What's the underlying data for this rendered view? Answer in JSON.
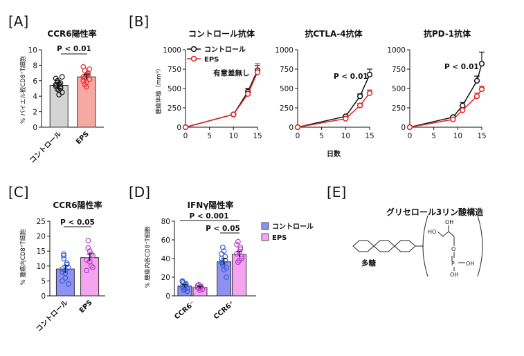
{
  "colors": {
    "control_line": "#111111",
    "eps_line": "#e02020",
    "bar_grey": "#d4d4d4",
    "bar_salmon": "#f5a9a0",
    "bar_blue": "#8f90f2",
    "bar_pink": "#f5a5f0",
    "dot_blue": "#3560d8",
    "dot_magenta": "#b43fc8",
    "dot_red": "#e83030"
  },
  "panels": {
    "A": {
      "label": "[A]",
      "title": "CCR6陽性率",
      "ylabel": "% パイエル板CD8⁺T細胞",
      "sig": "P < 0.01"
    },
    "B": {
      "label": "[B]",
      "ylabel": "腫瘍体積（mm³）",
      "xlabel": "日数",
      "legend_control": "コントロール",
      "legend_eps": "EPS",
      "ns_note": "有意差無し",
      "titles": [
        "コントロール抗体",
        "抗CTLA-4抗体",
        "抗PD-1抗体"
      ],
      "sig2": "P < 0.01",
      "sig3": "P < 0.01"
    },
    "C": {
      "label": "[C]",
      "title": "CCR6陽性率",
      "ylabel": "% 腫瘍内CD8⁺T細胞",
      "sig": "P < 0.05"
    },
    "D": {
      "label": "[D]",
      "title": "IFNγ陽性率",
      "ylabel": "% 腫瘍内各CD8⁺T細胞",
      "sig_top": "P < 0.001",
      "sig_low": "P < 0.05",
      "legend_control": "コントロール",
      "legend_eps": "EPS"
    },
    "E": {
      "label": "[E]",
      "title": "グリセロール3リン酸構造",
      "polysaccharide": "多糖",
      "atoms": {
        "ho1": "HO",
        "oh2": "OH",
        "o": "O",
        "p": "P",
        "oh3": "OH",
        "oh4": "OH"
      }
    }
  },
  "chart_data": [
    {
      "id": "A",
      "type": "bar",
      "title": "CCR6陽性率",
      "ylabel": "% パイエル板CD8⁺T細胞",
      "ylim": [
        0,
        10
      ],
      "yticks": [
        0,
        2,
        4,
        6,
        8,
        10
      ],
      "categories": [
        "コントロール",
        "EPS"
      ],
      "values": [
        5.4,
        6.5
      ],
      "errors": [
        0.3,
        0.35
      ],
      "points": [
        [
          5.5,
          6.0,
          4.8,
          5.2,
          4.5,
          6.3,
          5.8,
          4.2,
          5.0,
          6.5,
          5.3,
          4.9,
          5.6,
          5.7
        ],
        [
          6.5,
          7.3,
          5.8,
          6.7,
          7.5,
          6.0,
          5.5,
          6.8,
          7.0,
          6.2,
          7.8,
          6.4,
          5.2,
          6.9
        ]
      ],
      "annotation": "P < 0.01"
    },
    {
      "id": "B1",
      "type": "line",
      "title": "コントロール抗体",
      "xlabel": "日数",
      "ylabel": "腫瘍体積（mm³）",
      "xlim": [
        0,
        15
      ],
      "ylim": [
        0,
        1000
      ],
      "xticks": [
        0,
        5,
        10,
        15
      ],
      "yticks": [
        0,
        250,
        500,
        750,
        1000
      ],
      "x": [
        0,
        10,
        13,
        15
      ],
      "series": [
        {
          "name": "コントロール",
          "values": [
            0,
            165,
            460,
            735
          ],
          "errors": [
            0,
            15,
            40,
            60
          ]
        },
        {
          "name": "EPS",
          "values": [
            0,
            165,
            430,
            710
          ],
          "errors": [
            0,
            15,
            35,
            110
          ]
        }
      ],
      "annotation": "有意差無し"
    },
    {
      "id": "B2",
      "type": "line",
      "title": "抗CTLA-4抗体",
      "xlabel": "日数",
      "ylabel": "腫瘍体積（mm³）",
      "xlim": [
        0,
        15
      ],
      "ylim": [
        0,
        1000
      ],
      "xticks": [
        0,
        5,
        10,
        15
      ],
      "yticks": [
        0,
        250,
        500,
        750,
        1000
      ],
      "x": [
        0,
        10,
        13,
        15
      ],
      "series": [
        {
          "name": "コントロール",
          "values": [
            0,
            140,
            400,
            680
          ],
          "errors": [
            0,
            15,
            30,
            70
          ]
        },
        {
          "name": "EPS",
          "values": [
            0,
            110,
            280,
            440
          ],
          "errors": [
            0,
            15,
            25,
            40
          ]
        }
      ],
      "annotation": "P < 0.01"
    },
    {
      "id": "B3",
      "type": "line",
      "title": "抗PD-1抗体",
      "xlabel": "日数",
      "ylabel": "腫瘍体積（mm³）",
      "xlim": [
        0,
        15
      ],
      "ylim": [
        0,
        1000
      ],
      "xticks": [
        0,
        5,
        10,
        15
      ],
      "yticks": [
        0,
        250,
        500,
        750,
        1000
      ],
      "x": [
        0,
        9,
        11,
        14,
        15
      ],
      "series": [
        {
          "name": "コントロール",
          "values": [
            0,
            130,
            280,
            600,
            820
          ],
          "errors": [
            0,
            15,
            40,
            60,
            150
          ]
        },
        {
          "name": "EPS",
          "values": [
            0,
            100,
            220,
            400,
            490
          ],
          "errors": [
            0,
            15,
            30,
            40,
            40
          ]
        }
      ],
      "annotation": "P < 0.01"
    },
    {
      "id": "C",
      "type": "bar",
      "title": "CCR6陽性率",
      "ylabel": "% 腫瘍内CD8⁺T細胞",
      "ylim": [
        0,
        25
      ],
      "yticks": [
        0,
        5,
        10,
        15,
        20,
        25
      ],
      "categories": [
        "コントロール",
        "EPS"
      ],
      "values": [
        9.0,
        12.8
      ],
      "errors": [
        1.2,
        1.2
      ],
      "points": [
        [
          9.0,
          12.5,
          6.0,
          10.5,
          4.0,
          8.0,
          13.5,
          7.5,
          11.0,
          9.5,
          5.0,
          14.0,
          8.5
        ],
        [
          12.0,
          18.5,
          15.0,
          10.0,
          13.5,
          8.5,
          16.0,
          11.5,
          14.0,
          9.5
        ]
      ],
      "annotation": "P < 0.05"
    },
    {
      "id": "D",
      "type": "bar",
      "title": "IFNγ陽性率",
      "ylabel": "% 腫瘍内各CD8⁺T細胞",
      "ylim": [
        0,
        80
      ],
      "yticks": [
        0,
        20,
        40,
        60,
        80
      ],
      "categories": [
        "CCR6⁻",
        "CCR6⁺"
      ],
      "series": [
        {
          "name": "コントロール",
          "values": [
            10.5,
            36.5
          ],
          "errors": [
            1.5,
            3.5
          ],
          "points": [
            [
              10,
              14,
              7,
              12,
              5,
              16,
              9,
              11,
              13,
              8,
              15,
              6
            ],
            [
              36,
              52,
              28,
              42,
              20,
              45,
              33,
              48,
              38,
              30,
              40,
              35
            ]
          ]
        },
        {
          "name": "EPS",
          "values": [
            9.0,
            44.5
          ],
          "errors": [
            1.2,
            3.0
          ],
          "points": [
            [
              9,
              12,
              6,
              10,
              7,
              11,
              8,
              10
            ],
            [
              45,
              58,
              38,
              50,
              42,
              55,
              36,
              47,
              52,
              40
            ]
          ]
        }
      ],
      "annotations": [
        "P < 0.001",
        "P < 0.05"
      ]
    }
  ]
}
